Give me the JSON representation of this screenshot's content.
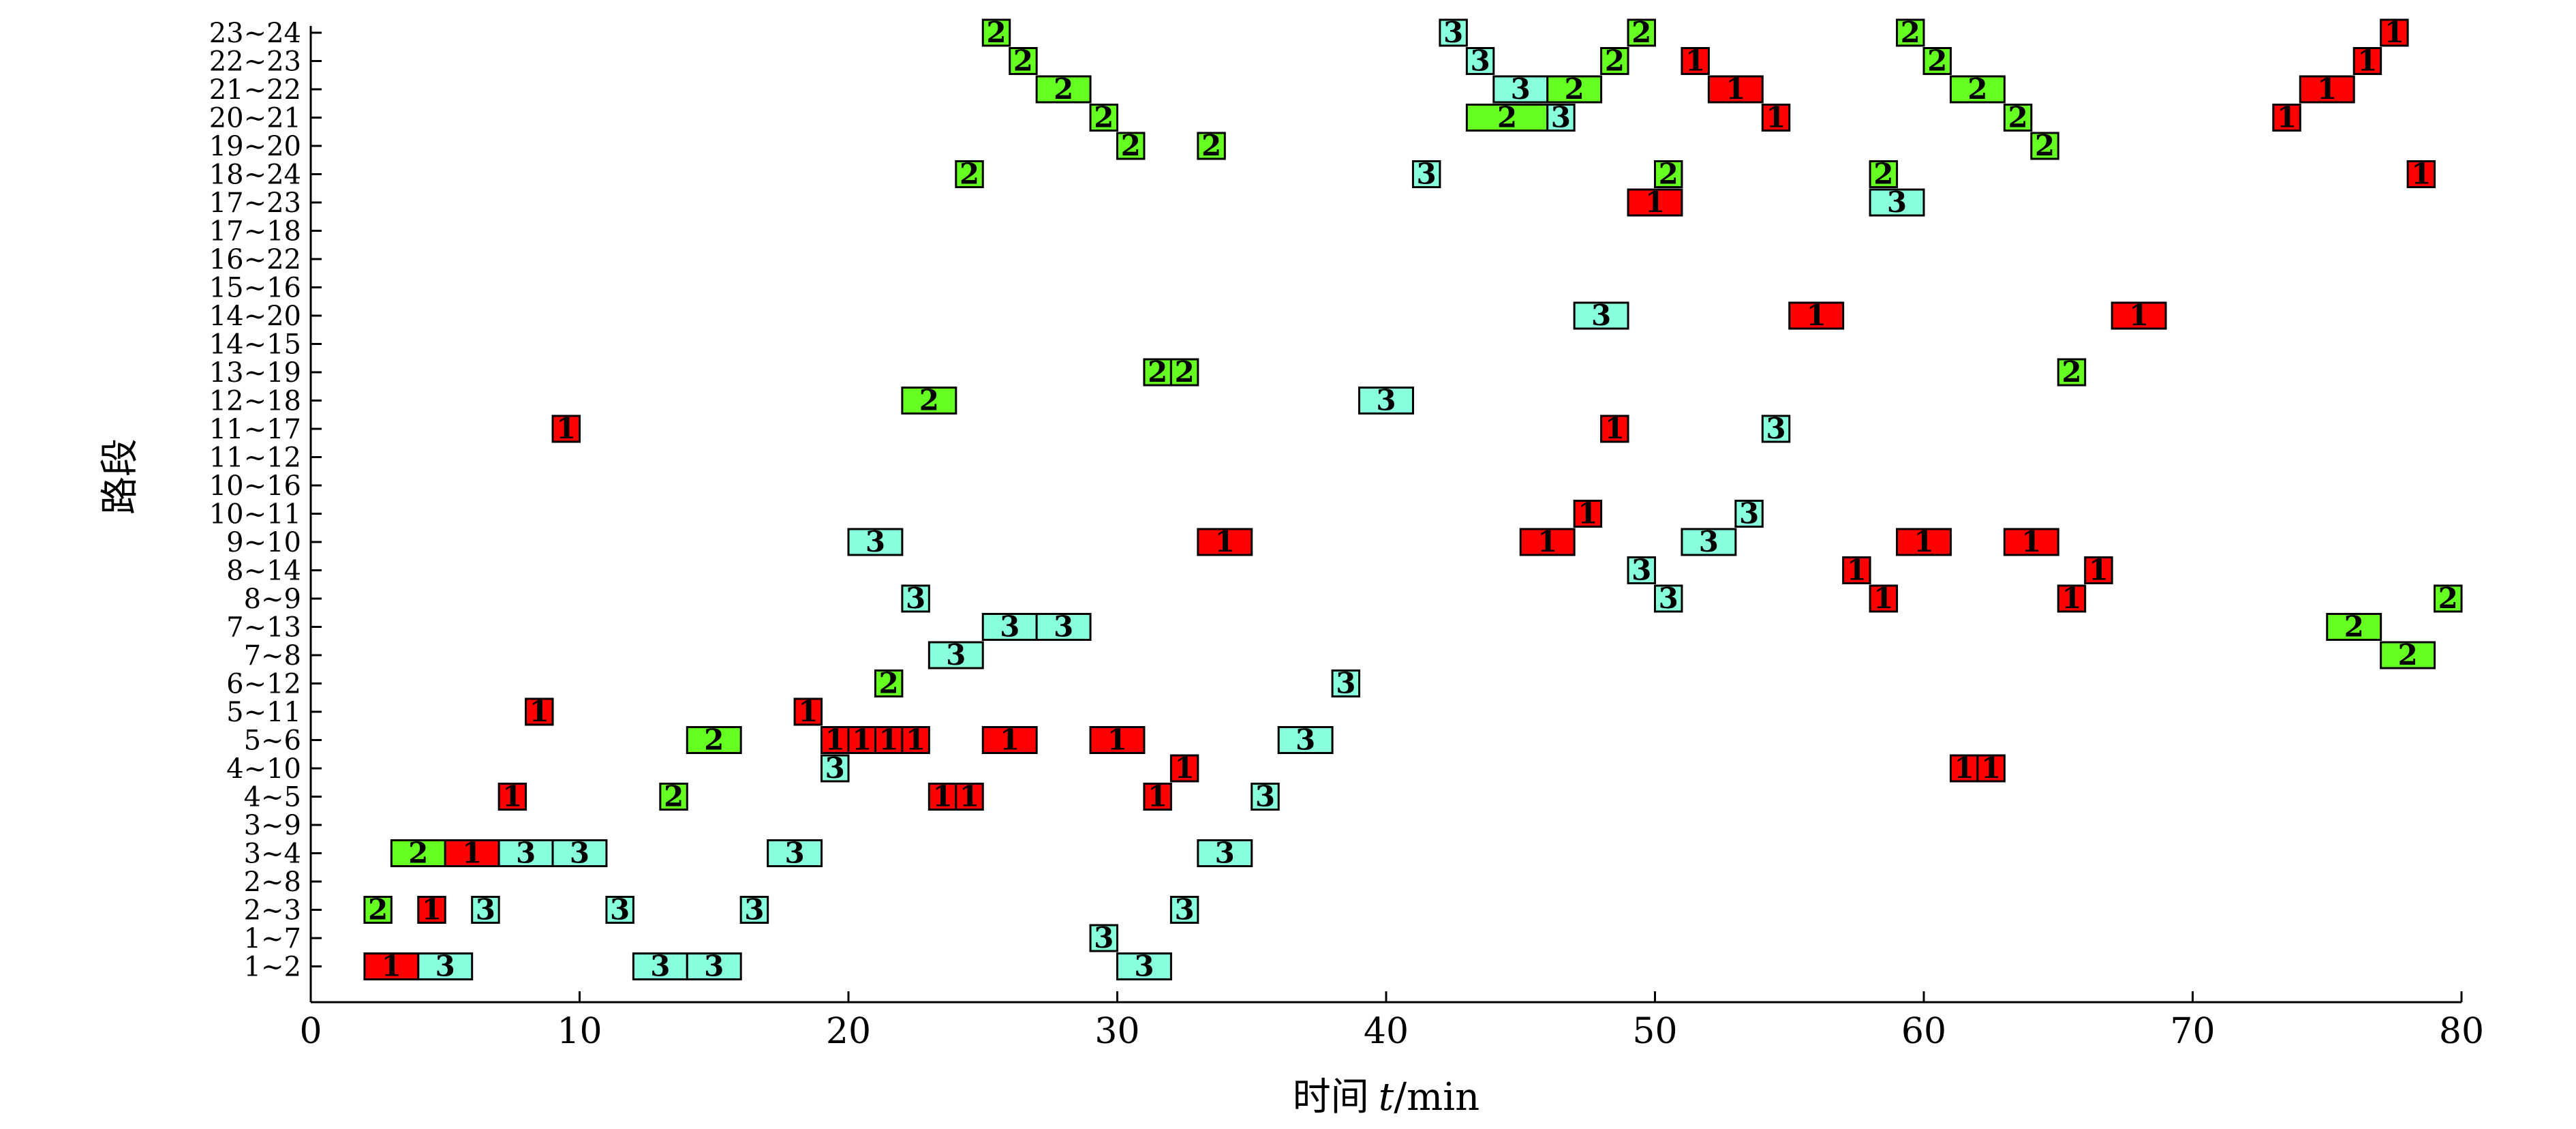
{
  "chart_data": {
    "type": "gantt",
    "xlabel_prefix": "时间",
    "xlabel_var": "t",
    "xlabel_unit": "/min",
    "ylabel": "路段",
    "xlim": [
      0,
      80
    ],
    "xticks": [
      0,
      10,
      20,
      30,
      40,
      50,
      60,
      70,
      80
    ],
    "categories": [
      "1~2",
      "1~7",
      "2~3",
      "2~8",
      "3~4",
      "3~9",
      "4~5",
      "4~10",
      "5~6",
      "5~11",
      "6~12",
      "7~8",
      "7~13",
      "8~9",
      "8~14",
      "9~10",
      "10~11",
      "10~16",
      "11~12",
      "11~17",
      "12~18",
      "13~19",
      "14~15",
      "14~20",
      "15~16",
      "16~22",
      "17~18",
      "17~23",
      "18~24",
      "19~20",
      "20~21",
      "21~22",
      "22~23",
      "23~24"
    ],
    "colors": {
      "1": "#ff0000",
      "2": "#66ff22",
      "3": "#88ffdd"
    },
    "bars": [
      {
        "seg": "1~2",
        "start": 2,
        "end": 4,
        "label": "1"
      },
      {
        "seg": "1~2",
        "start": 4,
        "end": 6,
        "label": "3"
      },
      {
        "seg": "1~2",
        "start": 12,
        "end": 14,
        "label": "3"
      },
      {
        "seg": "1~2",
        "start": 14,
        "end": 16,
        "label": "3"
      },
      {
        "seg": "1~2",
        "start": 30,
        "end": 32,
        "label": "3"
      },
      {
        "seg": "1~7",
        "start": 29,
        "end": 30,
        "label": "3"
      },
      {
        "seg": "2~3",
        "start": 2,
        "end": 3,
        "label": "2"
      },
      {
        "seg": "2~3",
        "start": 4,
        "end": 5,
        "label": "1"
      },
      {
        "seg": "2~3",
        "start": 6,
        "end": 7,
        "label": "3"
      },
      {
        "seg": "2~3",
        "start": 11,
        "end": 12,
        "label": "3"
      },
      {
        "seg": "2~3",
        "start": 16,
        "end": 17,
        "label": "3"
      },
      {
        "seg": "2~3",
        "start": 32,
        "end": 33,
        "label": "3"
      },
      {
        "seg": "3~4",
        "start": 3,
        "end": 5,
        "label": "2"
      },
      {
        "seg": "3~4",
        "start": 5,
        "end": 7,
        "label": "1"
      },
      {
        "seg": "3~4",
        "start": 7,
        "end": 9,
        "label": "3"
      },
      {
        "seg": "3~4",
        "start": 9,
        "end": 11,
        "label": "3"
      },
      {
        "seg": "3~4",
        "start": 17,
        "end": 19,
        "label": "3"
      },
      {
        "seg": "3~4",
        "start": 33,
        "end": 35,
        "label": "3"
      },
      {
        "seg": "4~5",
        "start": 7,
        "end": 8,
        "label": "1"
      },
      {
        "seg": "4~5",
        "start": 13,
        "end": 14,
        "label": "2"
      },
      {
        "seg": "4~5",
        "start": 23,
        "end": 24,
        "label": "1"
      },
      {
        "seg": "4~5",
        "start": 24,
        "end": 25,
        "label": "1"
      },
      {
        "seg": "4~5",
        "start": 31,
        "end": 32,
        "label": "1"
      },
      {
        "seg": "4~5",
        "start": 35,
        "end": 36,
        "label": "3"
      },
      {
        "seg": "4~10",
        "start": 19,
        "end": 20,
        "label": "3"
      },
      {
        "seg": "4~10",
        "start": 32,
        "end": 33,
        "label": "1"
      },
      {
        "seg": "4~10",
        "start": 61,
        "end": 62,
        "label": "1"
      },
      {
        "seg": "4~10",
        "start": 62,
        "end": 63,
        "label": "1"
      },
      {
        "seg": "5~6",
        "start": 14,
        "end": 16,
        "label": "2"
      },
      {
        "seg": "5~6",
        "start": 19,
        "end": 20,
        "label": "1"
      },
      {
        "seg": "5~6",
        "start": 20,
        "end": 21,
        "label": "1"
      },
      {
        "seg": "5~6",
        "start": 21,
        "end": 22,
        "label": "1"
      },
      {
        "seg": "5~6",
        "start": 22,
        "end": 23,
        "label": "1"
      },
      {
        "seg": "5~6",
        "start": 25,
        "end": 27,
        "label": "1"
      },
      {
        "seg": "5~6",
        "start": 29,
        "end": 31,
        "label": "1"
      },
      {
        "seg": "5~6",
        "start": 36,
        "end": 38,
        "label": "3"
      },
      {
        "seg": "5~11",
        "start": 8,
        "end": 9,
        "label": "1"
      },
      {
        "seg": "5~11",
        "start": 18,
        "end": 19,
        "label": "1"
      },
      {
        "seg": "6~12",
        "start": 21,
        "end": 22,
        "label": "2"
      },
      {
        "seg": "6~12",
        "start": 38,
        "end": 39,
        "label": "3"
      },
      {
        "seg": "7~8",
        "start": 23,
        "end": 25,
        "label": "3"
      },
      {
        "seg": "7~8",
        "start": 77,
        "end": 79,
        "label": "2"
      },
      {
        "seg": "7~13",
        "start": 25,
        "end": 27,
        "label": "3"
      },
      {
        "seg": "7~13",
        "start": 27,
        "end": 29,
        "label": "3"
      },
      {
        "seg": "7~13",
        "start": 75,
        "end": 77,
        "label": "2"
      },
      {
        "seg": "8~9",
        "start": 22,
        "end": 23,
        "label": "3"
      },
      {
        "seg": "8~9",
        "start": 50,
        "end": 51,
        "label": "3"
      },
      {
        "seg": "8~9",
        "start": 58,
        "end": 59,
        "label": "1"
      },
      {
        "seg": "8~9",
        "start": 65,
        "end": 66,
        "label": "1"
      },
      {
        "seg": "8~9",
        "start": 79,
        "end": 80,
        "label": "2"
      },
      {
        "seg": "8~14",
        "start": 49,
        "end": 50,
        "label": "3"
      },
      {
        "seg": "8~14",
        "start": 57,
        "end": 58,
        "label": "1"
      },
      {
        "seg": "8~14",
        "start": 66,
        "end": 67,
        "label": "1"
      },
      {
        "seg": "9~10",
        "start": 20,
        "end": 22,
        "label": "3"
      },
      {
        "seg": "9~10",
        "start": 33,
        "end": 35,
        "label": "1"
      },
      {
        "seg": "9~10",
        "start": 45,
        "end": 47,
        "label": "1"
      },
      {
        "seg": "9~10",
        "start": 51,
        "end": 53,
        "label": "3"
      },
      {
        "seg": "9~10",
        "start": 59,
        "end": 61,
        "label": "1"
      },
      {
        "seg": "9~10",
        "start": 63,
        "end": 65,
        "label": "1"
      },
      {
        "seg": "10~11",
        "start": 47,
        "end": 48,
        "label": "1"
      },
      {
        "seg": "10~11",
        "start": 53,
        "end": 54,
        "label": "3"
      },
      {
        "seg": "11~17",
        "start": 9,
        "end": 10,
        "label": "1"
      },
      {
        "seg": "11~17",
        "start": 48,
        "end": 49,
        "label": "1"
      },
      {
        "seg": "11~17",
        "start": 54,
        "end": 55,
        "label": "3"
      },
      {
        "seg": "12~18",
        "start": 22,
        "end": 24,
        "label": "2"
      },
      {
        "seg": "12~18",
        "start": 39,
        "end": 41,
        "label": "3"
      },
      {
        "seg": "13~19",
        "start": 31,
        "end": 32,
        "label": "2"
      },
      {
        "seg": "13~19",
        "start": 32,
        "end": 33,
        "label": "2"
      },
      {
        "seg": "13~19",
        "start": 65,
        "end": 66,
        "label": "2"
      },
      {
        "seg": "14~20",
        "start": 47,
        "end": 49,
        "label": "3"
      },
      {
        "seg": "14~20",
        "start": 55,
        "end": 57,
        "label": "1"
      },
      {
        "seg": "14~20",
        "start": 67,
        "end": 69,
        "label": "1"
      },
      {
        "seg": "17~23",
        "start": 49,
        "end": 51,
        "label": "1"
      },
      {
        "seg": "17~23",
        "start": 58,
        "end": 60,
        "label": "3"
      },
      {
        "seg": "18~24",
        "start": 24,
        "end": 25,
        "label": "2"
      },
      {
        "seg": "18~24",
        "start": 41,
        "end": 42,
        "label": "3"
      },
      {
        "seg": "18~24",
        "start": 50,
        "end": 51,
        "label": "2"
      },
      {
        "seg": "18~24",
        "start": 58,
        "end": 59,
        "label": "2"
      },
      {
        "seg": "18~24",
        "start": 78,
        "end": 79,
        "label": "1"
      },
      {
        "seg": "19~20",
        "start": 30,
        "end": 31,
        "label": "2"
      },
      {
        "seg": "19~20",
        "start": 33,
        "end": 34,
        "label": "2"
      },
      {
        "seg": "19~20",
        "start": 64,
        "end": 65,
        "label": "2"
      },
      {
        "seg": "20~21",
        "start": 29,
        "end": 30,
        "label": "2"
      },
      {
        "seg": "20~21",
        "start": 43,
        "end": 46,
        "label": "2"
      },
      {
        "seg": "20~21",
        "start": 46,
        "end": 47,
        "label": "3"
      },
      {
        "seg": "20~21",
        "start": 54,
        "end": 55,
        "label": "1"
      },
      {
        "seg": "20~21",
        "start": 63,
        "end": 64,
        "label": "2"
      },
      {
        "seg": "20~21",
        "start": 73,
        "end": 74,
        "label": "1"
      },
      {
        "seg": "21~22",
        "start": 27,
        "end": 29,
        "label": "2"
      },
      {
        "seg": "21~22",
        "start": 44,
        "end": 46,
        "label": "3"
      },
      {
        "seg": "21~22",
        "start": 46,
        "end": 48,
        "label": "2"
      },
      {
        "seg": "21~22",
        "start": 52,
        "end": 54,
        "label": "1"
      },
      {
        "seg": "21~22",
        "start": 61,
        "end": 63,
        "label": "2"
      },
      {
        "seg": "21~22",
        "start": 74,
        "end": 76,
        "label": "1"
      },
      {
        "seg": "22~23",
        "start": 26,
        "end": 27,
        "label": "2"
      },
      {
        "seg": "22~23",
        "start": 43,
        "end": 44,
        "label": "3"
      },
      {
        "seg": "22~23",
        "start": 48,
        "end": 49,
        "label": "2"
      },
      {
        "seg": "22~23",
        "start": 51,
        "end": 52,
        "label": "1"
      },
      {
        "seg": "22~23",
        "start": 60,
        "end": 61,
        "label": "2"
      },
      {
        "seg": "22~23",
        "start": 76,
        "end": 77,
        "label": "1"
      },
      {
        "seg": "23~24",
        "start": 25,
        "end": 26,
        "label": "2"
      },
      {
        "seg": "23~24",
        "start": 42,
        "end": 43,
        "label": "3"
      },
      {
        "seg": "23~24",
        "start": 49,
        "end": 50,
        "label": "2"
      },
      {
        "seg": "23~24",
        "start": 59,
        "end": 60,
        "label": "2"
      },
      {
        "seg": "23~24",
        "start": 77,
        "end": 78,
        "label": "1"
      }
    ]
  }
}
